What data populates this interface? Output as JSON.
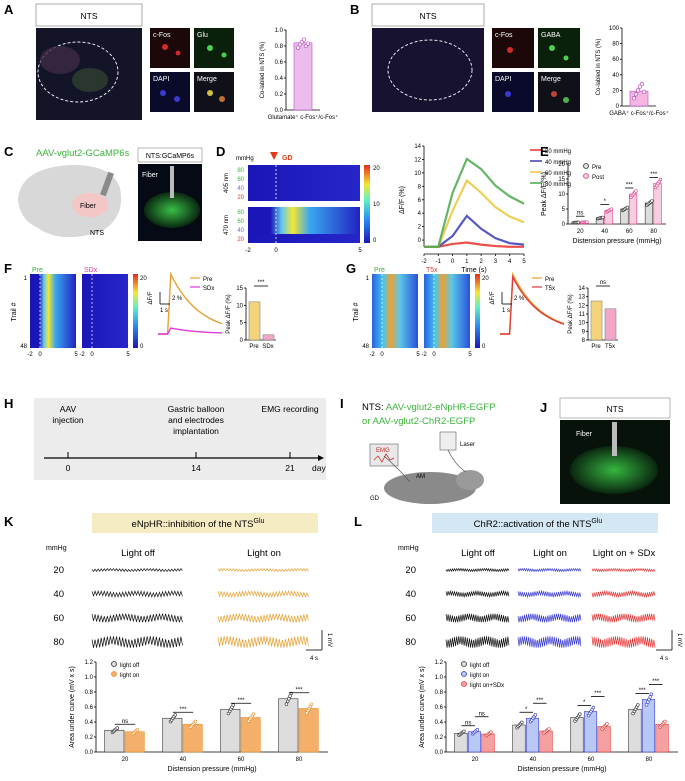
{
  "panels": {
    "A": "A",
    "B": "B",
    "C": "C",
    "D": "D",
    "E": "E",
    "F": "F",
    "G": "G",
    "H": "H",
    "I": "I",
    "J": "J",
    "K": "K",
    "L": "L"
  },
  "nts_label": "NTS",
  "nts_gcamp_label": "NTS:GCaMP6s",
  "aav_label": "AAV-vglut2-GCaMP6s",
  "fiber_label": "Fiber",
  "c_nts_label": "NTS",
  "micro_labels": {
    "cfos": "c-Fos",
    "glu": "Glu",
    "dapi": "DAPI",
    "merge": "Merge",
    "gaba": "GABA"
  },
  "chart_data": [
    {
      "id": "A-bar",
      "type": "bar",
      "ylabel": "Co-labled in NTS (%)",
      "xlabel": "Glutamate⁺ c-Fos⁺/c-Fos⁺",
      "ylim": [
        0,
        1.0
      ],
      "yticks": [
        "0.0",
        "0.2",
        "0.4",
        "0.6",
        "0.8",
        "1.0"
      ],
      "values": [
        0.84
      ],
      "points": [
        0.78,
        0.82,
        0.85,
        0.88,
        0.8,
        0.83
      ],
      "color": "#ebbcec"
    },
    {
      "id": "B-bar",
      "type": "bar",
      "ylabel": "Co-labled in NTS (%)",
      "xlabel": "GABA⁺ c-Fos⁺/c-Fos⁺",
      "ylim": [
        0,
        100
      ],
      "yticks": [
        "0",
        "20",
        "40",
        "60",
        "80",
        "100"
      ],
      "values": [
        19
      ],
      "points": [
        10,
        15,
        20,
        25,
        28,
        18
      ],
      "color": "#f5b6e2"
    },
    {
      "id": "D-heatmap",
      "type": "heatmap",
      "ylabel": "mmHg",
      "rows": [
        "80",
        "60",
        "40",
        "20"
      ],
      "groups": [
        "405 nm",
        "470 nm"
      ],
      "xticks": [
        "-2",
        "0",
        "5"
      ],
      "annotation": "GD",
      "colorbar": [
        "20",
        "10",
        "0"
      ]
    },
    {
      "id": "D-line",
      "type": "line",
      "ylabel": "ΔF/F (%)",
      "xlabel": "Time (s)",
      "x": [
        -2,
        -1,
        0,
        1,
        2,
        3,
        4,
        5
      ],
      "ylim": [
        -1,
        14
      ],
      "yticks": [
        "0",
        "2",
        "4",
        "6",
        "8",
        "10",
        "12",
        "14"
      ],
      "xticks": [
        "-2",
        "-1",
        "0",
        "1",
        "2",
        "3",
        "4",
        "5"
      ],
      "series": [
        {
          "name": "20 mmHg",
          "color": "#e8302a",
          "values": [
            0,
            0,
            0.4,
            0.6,
            0.3,
            0.1,
            0,
            0
          ]
        },
        {
          "name": "40 mmHg",
          "color": "#3a3ab8",
          "values": [
            0,
            0,
            1.5,
            4.3,
            2.5,
            1.2,
            0.5,
            0.3
          ]
        },
        {
          "name": "60 mmHg",
          "color": "#e7c73b",
          "values": [
            0,
            0,
            5,
            9.2,
            7.5,
            5.5,
            4.2,
            3.4
          ]
        },
        {
          "name": "80 mmHg",
          "color": "#49a84a",
          "values": [
            0,
            0,
            7.5,
            12.2,
            10.8,
            8.5,
            7,
            6
          ]
        }
      ]
    },
    {
      "id": "E-bar",
      "type": "bar",
      "ylabel": "Peak ΔF/F(%)",
      "xlabel": "Distension pressure (mmHg)",
      "categories": [
        "20",
        "40",
        "60",
        "80"
      ],
      "ylim": [
        0,
        20
      ],
      "yticks": [
        "0",
        "5",
        "10",
        "15",
        "20"
      ],
      "series": [
        {
          "name": "Pre",
          "values": [
            0.5,
            2,
            5,
            7
          ]
        },
        {
          "name": "Post",
          "values": [
            0.6,
            4.5,
            10,
            13.5
          ]
        }
      ],
      "sig": [
        "ns",
        "*",
        "***",
        "***"
      ]
    },
    {
      "id": "F-bar",
      "type": "bar",
      "ylabel": "Peak ΔF/F (%)",
      "categories": [
        "Pre",
        "SDx"
      ],
      "values": [
        11,
        1.5
      ],
      "ylim": [
        0,
        15
      ],
      "yticks": [
        "0",
        "5",
        "10",
        "15"
      ],
      "sig": "***",
      "legend": [
        "Pre",
        "SDx"
      ]
    },
    {
      "id": "G-bar",
      "type": "bar",
      "ylabel": "Peak ΔF/F (%)",
      "categories": [
        "Pre",
        "T5x"
      ],
      "values": [
        12.5,
        11.6
      ],
      "ylim": [
        8,
        14
      ],
      "yticks": [
        "8",
        "9",
        "10",
        "11",
        "12",
        "13",
        "14"
      ],
      "sig": "ns",
      "legend": [
        "Pre",
        "T5x"
      ]
    },
    {
      "id": "K-bar",
      "type": "bar",
      "ylabel": "Area under curve (mV x s)",
      "xlabel": "Distension pressure (mmHg)",
      "categories": [
        "20",
        "40",
        "60",
        "80"
      ],
      "ylim": [
        0,
        1.2
      ],
      "yticks": [
        "0.0",
        "0.2",
        "0.4",
        "0.6",
        "0.8",
        "1.0",
        "1.2"
      ],
      "series": [
        {
          "name": "light off",
          "values": [
            0.29,
            0.45,
            0.57,
            0.71
          ]
        },
        {
          "name": "light on",
          "values": [
            0.27,
            0.37,
            0.46,
            0.58
          ]
        }
      ],
      "sig": [
        "ns",
        "***",
        "***",
        "***"
      ]
    },
    {
      "id": "L-bar",
      "type": "bar",
      "ylabel": "Area under curve (mV x s)",
      "xlabel": "Distension pressure (mmHg)",
      "categories": [
        "20",
        "40",
        "60",
        "80"
      ],
      "ylim": [
        0,
        1.2
      ],
      "yticks": [
        "0.0",
        "0.2",
        "0.4",
        "0.6",
        "0.8",
        "1.0",
        "1.2"
      ],
      "series": [
        {
          "name": "light off",
          "values": [
            0.25,
            0.36,
            0.46,
            0.57
          ]
        },
        {
          "name": "light on",
          "values": [
            0.27,
            0.45,
            0.54,
            0.7
          ]
        },
        {
          "name": "light on+SDx",
          "values": [
            0.24,
            0.28,
            0.34,
            0.37
          ]
        }
      ],
      "sig": [
        [
          "ns",
          "ns"
        ],
        [
          "*",
          "***"
        ],
        [
          "*",
          "***"
        ],
        [
          "***",
          "***"
        ]
      ]
    }
  ],
  "F_labels": {
    "pre": "Pre",
    "sdx": "SDx",
    "ylabel": "Trail #",
    "trail_top": "1",
    "trail_bottom": "48",
    "xticks": [
      "-2",
      "0",
      "5"
    ],
    "cbar_top": "20",
    "cbar_bottom": "0",
    "scale_y": "2 %",
    "scale_x": "1 s",
    "scale_ylabel": "ΔF/F"
  },
  "G_labels": {
    "pre": "Pre",
    "t5x": "T5x",
    "ylabel": "Trail #",
    "trail_top": "1",
    "trail_bottom": "48",
    "xticks": [
      "-2",
      "0",
      "5"
    ],
    "cbar_top": "20",
    "cbar_bottom": "0",
    "scale_y": "2 %",
    "scale_x": "1 s",
    "scale_ylabel": "ΔF/F"
  },
  "timeline": {
    "events": [
      {
        "label": "AAV\ninjection",
        "day": "0"
      },
      {
        "label": "Gastric balloon\nand electrodes\nimplantation",
        "day": "14"
      },
      {
        "label": "EMG recording",
        "day": "21"
      }
    ],
    "unit": "day"
  },
  "I_text": {
    "title": "NTS: ",
    "line1": "AAV-vglut2-eNpHR-EGFP",
    "line2": "or AAV-vglut2-ChR2-EGFP",
    "emg": "EMG",
    "laser": "Laser",
    "am": "AM",
    "gd": "GD"
  },
  "J_label": "NTS",
  "J_fiber": "Fiber",
  "K": {
    "title": "eNpHR::inhibition of the NTS",
    "sup": "Glu",
    "col1": "Light off",
    "col2": "Light on",
    "mmhg": "mmHg",
    "rows": [
      "20",
      "40",
      "60",
      "80"
    ],
    "scale_v": "1 mV",
    "scale_t": "4 s"
  },
  "L": {
    "title": "ChR2::activation of the NTS",
    "sup": "Glu",
    "col1": "Light off",
    "col2": "Light on",
    "col3": "Light on + SDx",
    "mmhg": "mmHg",
    "rows": [
      "20",
      "40",
      "60",
      "80"
    ],
    "scale_v": "1 mV",
    "scale_t": "4 s"
  }
}
